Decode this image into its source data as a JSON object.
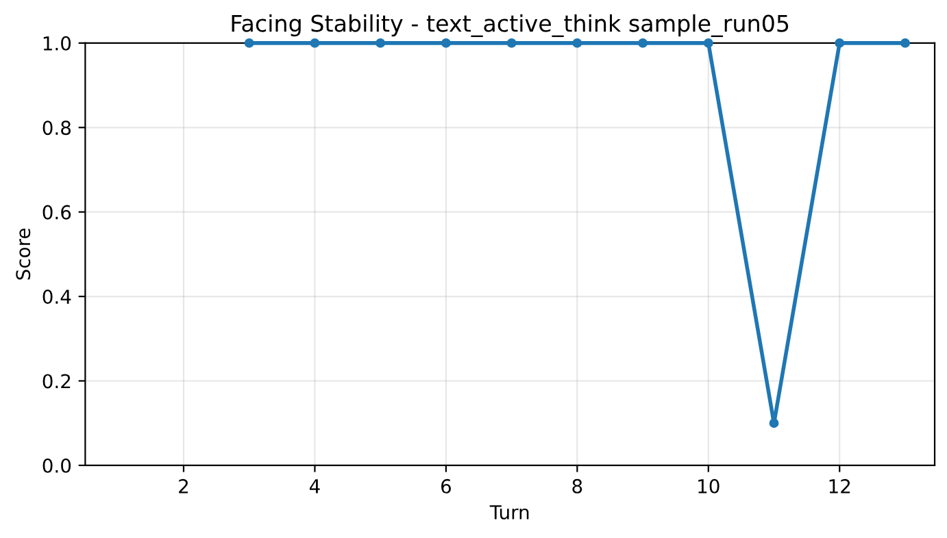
{
  "chart_data": {
    "type": "line",
    "title": "Facing Stability - text_active_think sample_run05",
    "xlabel": "Turn",
    "ylabel": "Score",
    "x": [
      3,
      4,
      5,
      6,
      7,
      8,
      9,
      10,
      11,
      12,
      13
    ],
    "series": [
      {
        "color": "#1f77b4",
        "values": [
          1.0,
          1.0,
          1.0,
          1.0,
          1.0,
          1.0,
          1.0,
          1.0,
          0.1,
          1.0,
          1.0
        ]
      }
    ],
    "xlim": [
      0.5,
      13.45
    ],
    "xticks": [
      2,
      4,
      6,
      8,
      10,
      12
    ],
    "ylim": [
      0,
      1
    ],
    "yticks": [
      {
        "value": 0,
        "label": "0.0"
      },
      0.2,
      0.4,
      0.6,
      0.8,
      {
        "value": 1,
        "label": "1.0"
      }
    ],
    "grid": true,
    "marker": "circle",
    "line_style": "solid",
    "legend": false
  }
}
